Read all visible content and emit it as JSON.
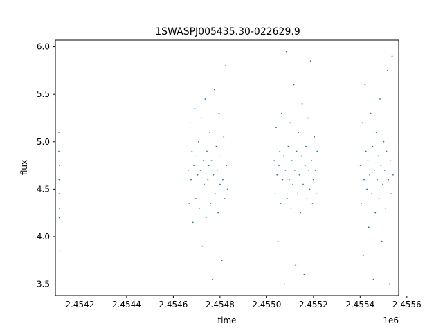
{
  "chart_data": {
    "type": "scatter",
    "title": "1SWASPJ005435.30-022629.9",
    "xlabel": "time",
    "ylabel": "flux",
    "x_offset_label": "1e6",
    "xlim": [
      2454095,
      2455565
    ],
    "ylim": [
      3.38,
      6.07
    ],
    "x_ticks": [
      {
        "value": 2454200,
        "label": "2.4542"
      },
      {
        "value": 2454400,
        "label": "2.4544"
      },
      {
        "value": 2454600,
        "label": "2.4546"
      },
      {
        "value": 2454800,
        "label": "2.4548"
      },
      {
        "value": 2455000,
        "label": "2.4550"
      },
      {
        "value": 2455200,
        "label": "2.4552"
      },
      {
        "value": 2455400,
        "label": "2.4554"
      },
      {
        "value": 2455600,
        "label": "2.4556"
      }
    ],
    "y_ticks": [
      {
        "value": 3.5,
        "label": "3.5"
      },
      {
        "value": 4.0,
        "label": "4.0"
      },
      {
        "value": 4.5,
        "label": "4.5"
      },
      {
        "value": 5.0,
        "label": "5.0"
      },
      {
        "value": 5.5,
        "label": "5.5"
      },
      {
        "value": 6.0,
        "label": "6.0"
      }
    ],
    "grid": false,
    "point_color": "#1f77b4",
    "series": [
      {
        "x": [
          2454110,
          2454110,
          2454111,
          2454111,
          2454112,
          2454112,
          2454113,
          2454113,
          2454664,
          2454668,
          2454672,
          2454676,
          2454680,
          2454684,
          2454688,
          2454692,
          2454696,
          2454700,
          2454704,
          2454708,
          2454712,
          2454716,
          2454720,
          2454724,
          2454728,
          2454732,
          2454736,
          2454740,
          2454744,
          2454748,
          2454752,
          2454756,
          2454760,
          2454764,
          2454768,
          2454772,
          2454776,
          2454780,
          2454784,
          2454788,
          2454792,
          2454796,
          2454800,
          2454804,
          2454808,
          2454812,
          2454816,
          2454820,
          2454824,
          2454828,
          2454832,
          2455032,
          2455036,
          2455040,
          2455044,
          2455048,
          2455052,
          2455056,
          2455060,
          2455064,
          2455068,
          2455072,
          2455076,
          2455080,
          2455084,
          2455088,
          2455092,
          2455096,
          2455100,
          2455104,
          2455108,
          2455112,
          2455116,
          2455120,
          2455124,
          2455128,
          2455132,
          2455136,
          2455140,
          2455144,
          2455148,
          2455152,
          2455156,
          2455160,
          2455164,
          2455168,
          2455172,
          2455176,
          2455180,
          2455184,
          2455188,
          2455192,
          2455196,
          2455200,
          2455204,
          2455208,
          2455212,
          2455216,
          2455401,
          2455405,
          2455409,
          2455413,
          2455417,
          2455421,
          2455425,
          2455429,
          2455433,
          2455437,
          2455441,
          2455445,
          2455449,
          2455453,
          2455457,
          2455461,
          2455465,
          2455469,
          2455473,
          2455477,
          2455481,
          2455485,
          2455489,
          2455493,
          2455497,
          2455501,
          2455505,
          2455509,
          2455513,
          2455517,
          2455521,
          2455525,
          2455529,
          2455533,
          2455537,
          2455541
        ],
        "y": [
          5.1,
          4.9,
          4.6,
          4.45,
          4.3,
          4.2,
          4.75,
          3.85,
          4.7,
          4.35,
          5.2,
          4.6,
          4.9,
          4.15,
          4.75,
          5.35,
          4.4,
          4.85,
          4.65,
          5.0,
          4.3,
          4.7,
          5.25,
          3.9,
          4.8,
          4.55,
          5.45,
          4.2,
          4.9,
          4.6,
          4.75,
          5.1,
          4.35,
          4.8,
          3.55,
          4.65,
          5.55,
          4.45,
          4.95,
          4.7,
          4.25,
          5.3,
          4.55,
          4.85,
          3.75,
          4.6,
          5.05,
          4.4,
          5.8,
          4.75,
          4.5,
          4.8,
          4.45,
          5.15,
          4.65,
          3.95,
          4.75,
          4.9,
          4.35,
          5.3,
          4.6,
          4.85,
          3.5,
          4.7,
          5.95,
          4.4,
          4.95,
          4.6,
          5.2,
          4.3,
          4.8,
          4.55,
          5.6,
          4.7,
          3.7,
          4.9,
          4.45,
          5.1,
          4.65,
          4.25,
          4.85,
          5.4,
          4.55,
          3.6,
          4.75,
          4.95,
          4.4,
          5.25,
          4.7,
          4.5,
          5.85,
          4.8,
          4.35,
          4.6,
          5.05,
          4.7,
          4.45,
          4.9,
          4.75,
          4.35,
          5.2,
          3.8,
          4.6,
          5.6,
          4.9,
          4.5,
          4.8,
          4.1,
          4.65,
          5.3,
          4.45,
          4.95,
          3.55,
          4.7,
          4.25,
          5.1,
          4.6,
          4.85,
          4.4,
          5.45,
          4.75,
          3.95,
          4.55,
          5.0,
          4.7,
          4.3,
          4.9,
          5.75,
          4.6,
          3.5,
          4.8,
          4.45,
          5.9,
          4.65
        ]
      }
    ]
  }
}
